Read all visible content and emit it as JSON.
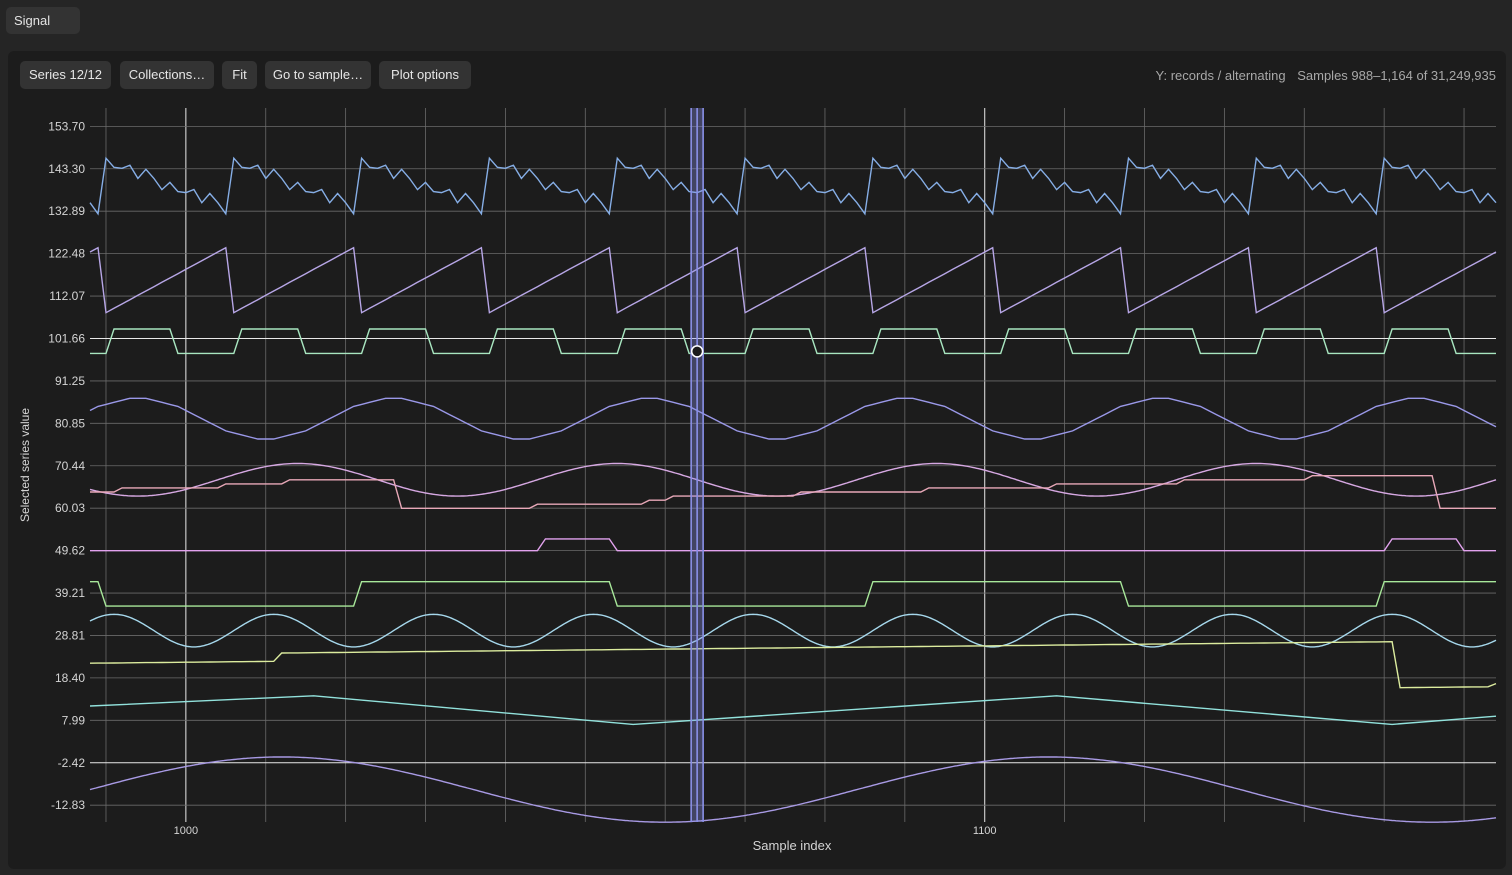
{
  "window": {
    "tab_label": "Signal"
  },
  "toolbar": {
    "series_label": "Series 12/12",
    "collections_label": "Collections…",
    "fit_label": "Fit",
    "goto_label": "Go to sample…",
    "plot_options_label": "Plot options"
  },
  "status": {
    "y_mode": "Y: records / alternating",
    "samples": "Samples 988–1,164 of 31,249,935"
  },
  "chart_data": {
    "type": "line",
    "xlabel": "Sample index",
    "ylabel": "Selected series value",
    "xlim": [
      988,
      1164
    ],
    "ylim": [
      -14.5,
      156
    ],
    "x_ticks": [
      1000,
      1100
    ],
    "y_ticks": [
      153.7,
      143.3,
      132.89,
      122.48,
      112.07,
      101.66,
      91.25,
      80.85,
      70.44,
      60.03,
      49.62,
      39.21,
      28.81,
      18.4,
      7.99,
      -2.42,
      -12.83
    ],
    "y_tick_labels": [
      "153.70",
      "143.30",
      "132.89",
      "122.48",
      "112.07",
      "101.66",
      "91.25",
      "80.85",
      "70.44",
      "60.03",
      "49.62",
      "39.21",
      "28.81",
      "18.40",
      "7.99",
      "-2.42",
      "-12.83"
    ],
    "cursor": {
      "x": 1064,
      "y": 98.5
    },
    "highlight_band": [
      1063,
      1065
    ],
    "colors": {
      "grid": "#6a6a6a",
      "grid_major": "#e8e8e8",
      "cursor": "#8a90e8",
      "series": [
        "#86aee6",
        "#b7a6e6",
        "#a8e6c0",
        "#9a98e8",
        "#d6a8e2",
        "#e8a8b8",
        "#e2a2ee",
        "#a8e89a",
        "#a6d8ec",
        "#dcec9e",
        "#92e2dc",
        "#a89ae4"
      ]
    },
    "series": [
      {
        "kind": "sawnoise",
        "period": 16,
        "offset": 990,
        "min": 132,
        "max": 146
      },
      {
        "kind": "saw",
        "period": 16,
        "offset": 990,
        "min": 108,
        "max": 125
      },
      {
        "kind": "square",
        "period": 16,
        "offset": 991,
        "low": 98,
        "high": 104
      },
      {
        "kind": "sinestep",
        "period": 32,
        "offset": 994,
        "mid": 82,
        "amp": 5
      },
      {
        "kind": "sine",
        "period": 40,
        "offset": 1004,
        "mid": 67,
        "amp": 4
      },
      {
        "kind": "steps",
        "breaks": [
          990,
          992,
          1005,
          1013,
          1027,
          1029,
          1044,
          1058,
          1061,
          1077,
          1093,
          1109,
          1125,
          1141,
          1157
        ],
        "values": [
          64,
          65,
          66,
          67,
          60,
          60,
          61,
          62,
          63,
          64,
          65,
          66,
          67,
          68,
          60
        ]
      },
      {
        "kind": "pulse",
        "base": 49.6,
        "high": 52.5,
        "ranges": [
          [
            1045,
            1053
          ],
          [
            1151,
            1159
          ]
        ]
      },
      {
        "kind": "squarelong",
        "period": 64,
        "offset": 990,
        "low": 36,
        "high": 42
      },
      {
        "kind": "wave",
        "period": 20,
        "offset": 1006,
        "mid": 30,
        "amp": 4
      },
      {
        "kind": "ramp",
        "breaks": [
          988,
          1012,
          1152,
          1164
        ],
        "values": [
          22,
          24.5,
          16,
          17
        ]
      },
      {
        "kind": "tri",
        "points": [
          [
            988,
            11.5
          ],
          [
            1016,
            14
          ],
          [
            1056,
            7
          ],
          [
            1109,
            14
          ],
          [
            1151,
            7
          ],
          [
            1164,
            9
          ]
        ]
      },
      {
        "kind": "slowsine",
        "period": 96,
        "offset": 988,
        "mid": -9,
        "amp": 8
      }
    ]
  }
}
